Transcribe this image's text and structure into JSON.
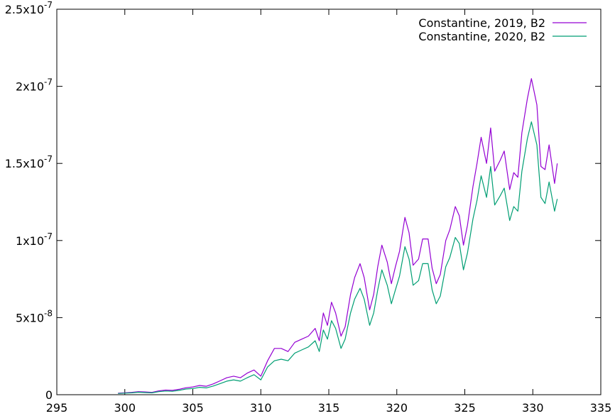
{
  "chart_data": {
    "type": "line",
    "title": "",
    "xlabel": "",
    "ylabel": "",
    "xlim": [
      295,
      335
    ],
    "ylim": [
      0,
      2.5e-07
    ],
    "grid": false,
    "legend_position": "top-right",
    "x_ticks": [
      {
        "value": 295,
        "label": "295"
      },
      {
        "value": 300,
        "label": "300"
      },
      {
        "value": 305,
        "label": "305"
      },
      {
        "value": 310,
        "label": "310"
      },
      {
        "value": 315,
        "label": "315"
      },
      {
        "value": 320,
        "label": "320"
      },
      {
        "value": 325,
        "label": "325"
      },
      {
        "value": 330,
        "label": "330"
      },
      {
        "value": 335,
        "label": "335"
      }
    ],
    "y_ticks": [
      {
        "value": 0,
        "base": "0",
        "exp": ""
      },
      {
        "value": 5e-08,
        "base": "5x10",
        "exp": "-8"
      },
      {
        "value": 1e-07,
        "base": "1x10",
        "exp": "-7"
      },
      {
        "value": 1.5e-07,
        "base": "1.5x10",
        "exp": "-7"
      },
      {
        "value": 2e-07,
        "base": "2x10",
        "exp": "-7"
      },
      {
        "value": 2.5e-07,
        "base": "2.5x10",
        "exp": "-7"
      }
    ],
    "series": [
      {
        "name": "Constantine, 2019, B2",
        "color": "#9400d3",
        "points": [
          [
            299.5,
            1e-09
          ],
          [
            300.0,
            1.2e-09
          ],
          [
            300.5,
            1.5e-09
          ],
          [
            301.0,
            2e-09
          ],
          [
            301.5,
            1.8e-09
          ],
          [
            302.0,
            1.5e-09
          ],
          [
            302.5,
            2.5e-09
          ],
          [
            303.0,
            3e-09
          ],
          [
            303.5,
            2.8e-09
          ],
          [
            304.0,
            3.5e-09
          ],
          [
            304.5,
            4.5e-09
          ],
          [
            305.0,
            5e-09
          ],
          [
            305.5,
            6e-09
          ],
          [
            306.0,
            5.5e-09
          ],
          [
            306.5,
            7e-09
          ],
          [
            307.0,
            9e-09
          ],
          [
            307.5,
            1.1e-08
          ],
          [
            308.0,
            1.2e-08
          ],
          [
            308.5,
            1.1e-08
          ],
          [
            309.0,
            1.4e-08
          ],
          [
            309.5,
            1.6e-08
          ],
          [
            310.0,
            1.2e-08
          ],
          [
            310.5,
            2.2e-08
          ],
          [
            311.0,
            3e-08
          ],
          [
            311.5,
            3e-08
          ],
          [
            312.0,
            2.8e-08
          ],
          [
            312.5,
            3.4e-08
          ],
          [
            313.0,
            3.6e-08
          ],
          [
            313.5,
            3.8e-08
          ],
          [
            314.0,
            4.3e-08
          ],
          [
            314.3,
            3.5e-08
          ],
          [
            314.6,
            5.3e-08
          ],
          [
            314.9,
            4.5e-08
          ],
          [
            315.2,
            6e-08
          ],
          [
            315.5,
            5.3e-08
          ],
          [
            315.9,
            3.8e-08
          ],
          [
            316.2,
            4.4e-08
          ],
          [
            316.6,
            6.5e-08
          ],
          [
            316.9,
            7.6e-08
          ],
          [
            317.3,
            8.5e-08
          ],
          [
            317.6,
            7.6e-08
          ],
          [
            318.0,
            5.5e-08
          ],
          [
            318.3,
            6.5e-08
          ],
          [
            318.6,
            8.3e-08
          ],
          [
            318.9,
            9.7e-08
          ],
          [
            319.3,
            8.6e-08
          ],
          [
            319.6,
            7.2e-08
          ],
          [
            319.9,
            8.3e-08
          ],
          [
            320.2,
            9.3e-08
          ],
          [
            320.6,
            1.15e-07
          ],
          [
            320.9,
            1.05e-07
          ],
          [
            321.2,
            8.4e-08
          ],
          [
            321.6,
            8.8e-08
          ],
          [
            321.9,
            1.01e-07
          ],
          [
            322.3,
            1.01e-07
          ],
          [
            322.6,
            8.2e-08
          ],
          [
            322.9,
            7.2e-08
          ],
          [
            323.2,
            7.8e-08
          ],
          [
            323.6,
            1e-07
          ],
          [
            323.9,
            1.07e-07
          ],
          [
            324.3,
            1.22e-07
          ],
          [
            324.6,
            1.16e-07
          ],
          [
            324.9,
            9.7e-08
          ],
          [
            325.2,
            1.1e-07
          ],
          [
            325.6,
            1.35e-07
          ],
          [
            325.9,
            1.5e-07
          ],
          [
            326.2,
            1.67e-07
          ],
          [
            326.6,
            1.5e-07
          ],
          [
            326.9,
            1.73e-07
          ],
          [
            327.2,
            1.45e-07
          ],
          [
            327.6,
            1.52e-07
          ],
          [
            327.9,
            1.58e-07
          ],
          [
            328.3,
            1.33e-07
          ],
          [
            328.6,
            1.44e-07
          ],
          [
            328.9,
            1.41e-07
          ],
          [
            329.2,
            1.7e-07
          ],
          [
            329.6,
            1.92e-07
          ],
          [
            329.9,
            2.05e-07
          ],
          [
            330.3,
            1.88e-07
          ],
          [
            330.6,
            1.48e-07
          ],
          [
            330.9,
            1.46e-07
          ],
          [
            331.2,
            1.62e-07
          ],
          [
            331.6,
            1.37e-07
          ],
          [
            331.8,
            1.5e-07
          ]
        ]
      },
      {
        "name": "Constantine, 2020, B2",
        "color": "#009e73",
        "points": [
          [
            299.5,
            8e-10
          ],
          [
            300.0,
            1e-09
          ],
          [
            300.5,
            1.2e-09
          ],
          [
            301.0,
            1.6e-09
          ],
          [
            301.5,
            1.4e-09
          ],
          [
            302.0,
            1.2e-09
          ],
          [
            302.5,
            2e-09
          ],
          [
            303.0,
            2.4e-09
          ],
          [
            303.5,
            2.2e-09
          ],
          [
            304.0,
            2.8e-09
          ],
          [
            304.5,
            3.7e-09
          ],
          [
            305.0,
            4e-09
          ],
          [
            305.5,
            4.8e-09
          ],
          [
            306.0,
            4.4e-09
          ],
          [
            306.5,
            5.6e-09
          ],
          [
            307.0,
            7.2e-09
          ],
          [
            307.5,
            8.8e-09
          ],
          [
            308.0,
            9.6e-09
          ],
          [
            308.5,
            8.8e-09
          ],
          [
            309.0,
            1.1e-08
          ],
          [
            309.5,
            1.3e-08
          ],
          [
            310.0,
            9.6e-09
          ],
          [
            310.5,
            1.8e-08
          ],
          [
            311.0,
            2.2e-08
          ],
          [
            311.5,
            2.3e-08
          ],
          [
            312.0,
            2.2e-08
          ],
          [
            312.5,
            2.7e-08
          ],
          [
            313.0,
            2.9e-08
          ],
          [
            313.5,
            3.1e-08
          ],
          [
            314.0,
            3.5e-08
          ],
          [
            314.3,
            2.8e-08
          ],
          [
            314.6,
            4.2e-08
          ],
          [
            314.9,
            3.6e-08
          ],
          [
            315.2,
            4.8e-08
          ],
          [
            315.5,
            4.3e-08
          ],
          [
            315.9,
            3e-08
          ],
          [
            316.2,
            3.6e-08
          ],
          [
            316.6,
            5.3e-08
          ],
          [
            316.9,
            6.2e-08
          ],
          [
            317.3,
            6.9e-08
          ],
          [
            317.6,
            6.2e-08
          ],
          [
            318.0,
            4.5e-08
          ],
          [
            318.3,
            5.3e-08
          ],
          [
            318.6,
            6.8e-08
          ],
          [
            318.9,
            8.1e-08
          ],
          [
            319.3,
            7.1e-08
          ],
          [
            319.6,
            5.9e-08
          ],
          [
            319.9,
            6.8e-08
          ],
          [
            320.2,
            7.7e-08
          ],
          [
            320.6,
            9.6e-08
          ],
          [
            320.9,
            8.8e-08
          ],
          [
            321.2,
            7.1e-08
          ],
          [
            321.6,
            7.4e-08
          ],
          [
            321.9,
            8.5e-08
          ],
          [
            322.3,
            8.5e-08
          ],
          [
            322.6,
            6.8e-08
          ],
          [
            322.9,
            5.9e-08
          ],
          [
            323.2,
            6.4e-08
          ],
          [
            323.6,
            8.3e-08
          ],
          [
            323.9,
            8.9e-08
          ],
          [
            324.3,
            1.02e-07
          ],
          [
            324.6,
            9.8e-08
          ],
          [
            324.9,
            8.1e-08
          ],
          [
            325.2,
            9.2e-08
          ],
          [
            325.6,
            1.14e-07
          ],
          [
            325.9,
            1.26e-07
          ],
          [
            326.2,
            1.42e-07
          ],
          [
            326.6,
            1.28e-07
          ],
          [
            326.9,
            1.48e-07
          ],
          [
            327.2,
            1.23e-07
          ],
          [
            327.6,
            1.29e-07
          ],
          [
            327.9,
            1.34e-07
          ],
          [
            328.3,
            1.13e-07
          ],
          [
            328.6,
            1.22e-07
          ],
          [
            328.9,
            1.19e-07
          ],
          [
            329.2,
            1.45e-07
          ],
          [
            329.6,
            1.66e-07
          ],
          [
            329.9,
            1.77e-07
          ],
          [
            330.3,
            1.62e-07
          ],
          [
            330.6,
            1.28e-07
          ],
          [
            330.9,
            1.24e-07
          ],
          [
            331.2,
            1.38e-07
          ],
          [
            331.6,
            1.19e-07
          ],
          [
            331.8,
            1.27e-07
          ]
        ]
      }
    ]
  }
}
